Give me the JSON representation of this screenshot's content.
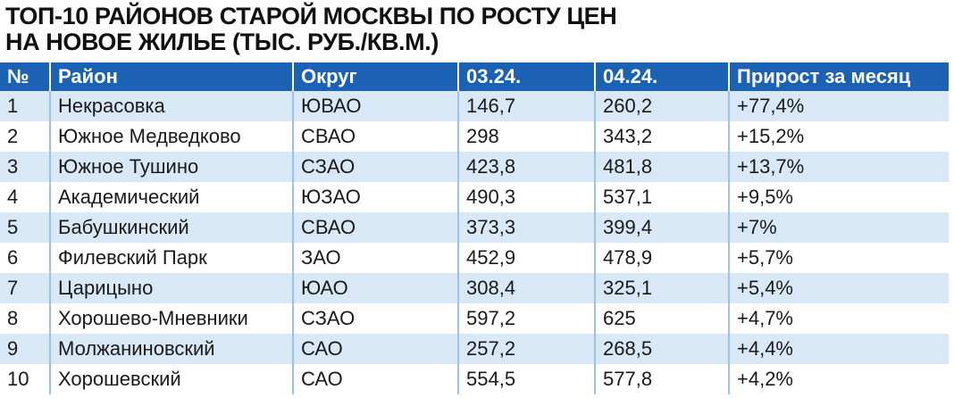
{
  "title_lines": [
    "ТОП-10 районов старой Москвы по росту цен",
    "на новое жилье (тыс. руб./кв.м.)"
  ],
  "table": {
    "header": [
      "№",
      "Район",
      "Округ",
      "03.24.",
      "04.24.",
      "Прирост за месяц"
    ],
    "rows": [
      [
        "1",
        "Некрасовка",
        "ЮВАО",
        "146,7",
        "260,2",
        "+77,4%"
      ],
      [
        "2",
        "Южное Медведково",
        "СВАО",
        "298",
        "343,2",
        "+15,2%"
      ],
      [
        "3",
        "Южное Тушино",
        "СЗАО",
        "423,8",
        "481,8",
        "+13,7%"
      ],
      [
        "4",
        "Академический",
        "ЮЗАО",
        "490,3",
        "537,1",
        "+9,5%"
      ],
      [
        "5",
        "Бабушкинский",
        "СВАО",
        "373,3",
        "399,4",
        "+7%"
      ],
      [
        "6",
        "Филевский Парк",
        "ЗАО",
        "452,9",
        "478,9",
        "+5,7%"
      ],
      [
        "7",
        "Царицыно",
        "ЮАО",
        "308,4",
        "325,1",
        "+5,4%"
      ],
      [
        "8",
        "Хорошево-Мневники",
        "СЗАО",
        "597,2",
        "625",
        "+4,7%"
      ],
      [
        "9",
        "Молжаниновский",
        "САО",
        "257,2",
        "268,5",
        "+4,4%"
      ],
      [
        "10",
        "Хорошевский",
        "САО",
        "554,5",
        "577,8",
        "+4,2%"
      ]
    ]
  }
}
